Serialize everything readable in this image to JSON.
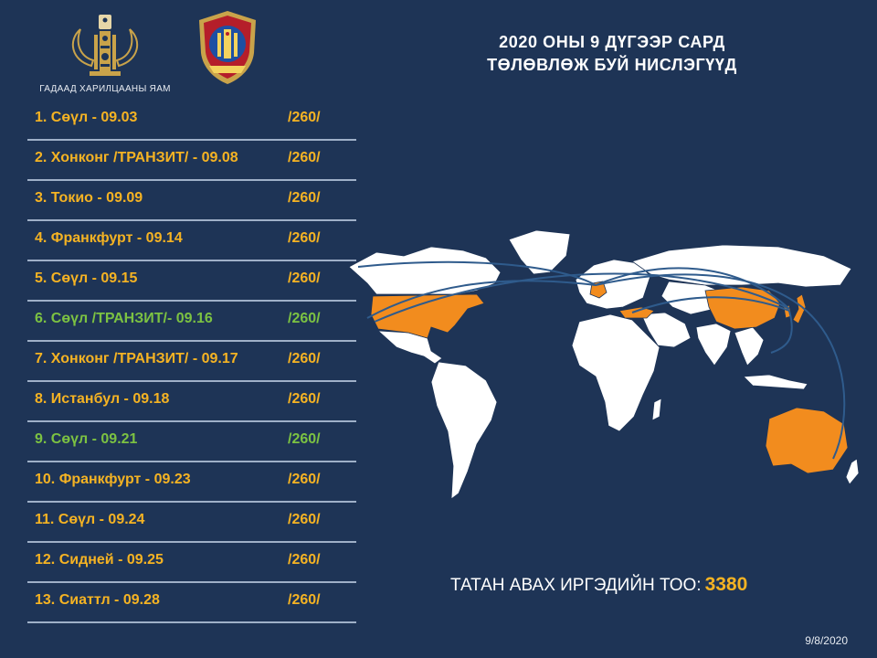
{
  "org": {
    "caption": "ГАДААД ХАРИЛЦААНЫ ЯАМ",
    "emblem_icon": "soyombo-emblem-icon",
    "badge_icon": "police-shield-icon"
  },
  "title": {
    "line1": "2020 ОНЫ 9 ДҮГЭЭР САРД",
    "line2": "ТӨЛӨВЛӨЖ БУЙ НИСЛЭГҮҮД"
  },
  "colors": {
    "background": "#1e3456",
    "default_text": "#f5b323",
    "highlight_text": "#7cc242",
    "divider": "#9fb0c8",
    "map_land": "#ffffff",
    "map_highlight": "#f28c1e",
    "route": "#2f5b8c"
  },
  "flights": [
    {
      "label": "1. Сөүл - 09.03",
      "qty": "/260/",
      "color": "#f5b323"
    },
    {
      "label": "2. Хонконг /ТРАНЗИТ/ - 09.08",
      "qty": "/260/",
      "color": "#f5b323"
    },
    {
      "label": "3. Токио - 09.09",
      "qty": "/260/",
      "color": "#f5b323"
    },
    {
      "label": "4. Франкфурт - 09.14",
      "qty": "/260/",
      "color": "#f5b323"
    },
    {
      "label": "5. Сөүл - 09.15",
      "qty": "/260/",
      "color": "#f5b323"
    },
    {
      "label": "6. Сөүл /ТРАНЗИТ/- 09.16",
      "qty": "/260/",
      "color": "#7cc242"
    },
    {
      "label": "7. Хонконг /ТРАНЗИТ/ - 09.17",
      "qty": "/260/",
      "color": "#f5b323"
    },
    {
      "label": "8. Истанбул - 09.18",
      "qty": "/260/",
      "color": "#f5b323"
    },
    {
      "label": "9. Сөүл - 09.21",
      "qty": "/260/",
      "color": "#7cc242"
    },
    {
      "label": "10. Франкфурт - 09.23",
      "qty": "/260/",
      "color": "#f5b323"
    },
    {
      "label": "11. Сөүл - 09.24",
      "qty": "/260/",
      "color": "#f5b323"
    },
    {
      "label": "12. Сидней - 09.25",
      "qty": "/260/",
      "color": "#f5b323"
    },
    {
      "label": "13. Сиаттл - 09.28",
      "qty": "/260/",
      "color": "#f5b323"
    }
  ],
  "total": {
    "label": "ТАТАН АВАХ ИРГЭДИЙН ТОО:",
    "value": "3380"
  },
  "date": "9/8/2020"
}
